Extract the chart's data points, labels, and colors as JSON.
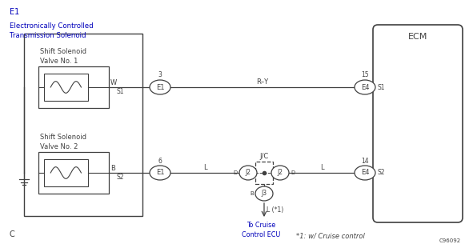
{
  "bg_color": "#ffffff",
  "line_color": "#404040",
  "blue_color": "#0000bb",
  "title_color": "#0000bb",
  "figsize": [
    5.86,
    3.1
  ],
  "dpi": 100,
  "main_title": "E1",
  "main_subtitle": "Electronically Controlled\nTransmission Solenoid",
  "solenoid1_label": "Shift Solenoid\nValve No. 1",
  "solenoid2_label": "Shift Solenoid\nValve No. 2",
  "ecm_label": "ECM",
  "jc_label": "J/C",
  "conn_E1_top_num": "3",
  "conn_E1_top_pin": "E1",
  "conn_E1_top_side": "S1",
  "conn_W": "W",
  "conn_E4_top_num": "15",
  "conn_E4_top_pin": "E4",
  "conn_E4_top_side": "S1",
  "conn_E1_bot_num": "6",
  "conn_E1_bot_pin": "E1",
  "conn_E1_bot_side": "S2",
  "conn_B": "B",
  "conn_E4_bot_num": "14",
  "conn_E4_bot_pin": "E4",
  "conn_E4_bot_side": "S2",
  "wire_top_label": "R–Y",
  "wire_bot_left_label": "L",
  "wire_bot_right_label": "L",
  "wire_bot_D_left": "D",
  "wire_bot_D_right": "D",
  "wire_bot_B": "B",
  "wire_j2_left": "J2",
  "wire_j2_right": "J2",
  "wire_j3": "J3",
  "wire_L_star1": "L (*1)",
  "arrow_label": "To Cruise\nControl ECU",
  "footnote": "*1: w/ Cruise control",
  "code": "C96092",
  "bottom_left": "C",
  "xlim": [
    0,
    586
  ],
  "ylim": [
    0,
    310
  ]
}
